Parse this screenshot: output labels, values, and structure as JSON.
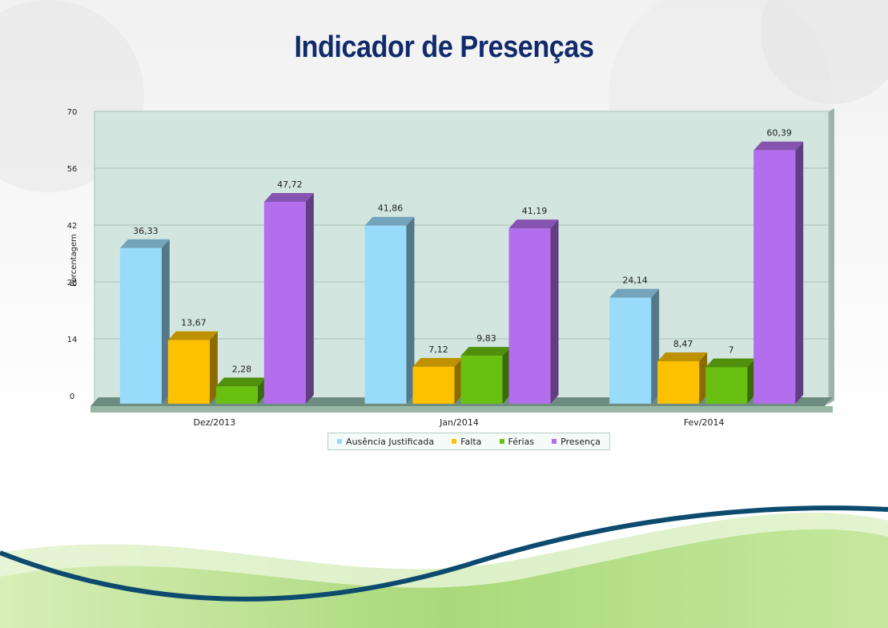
{
  "slide": {
    "title": "Indicador de Presenças"
  },
  "chart_data": {
    "type": "bar",
    "categories": [
      "Dez/2013",
      "Jan/2014",
      "Fev/2014"
    ],
    "series": [
      {
        "name": "Ausência Justificada",
        "values": [
          36.33,
          41.86,
          24.14
        ],
        "labels": [
          "36,33",
          "41,86",
          "24,14"
        ],
        "color": "#99dbfa"
      },
      {
        "name": "Falta",
        "values": [
          13.67,
          7.12,
          8.47
        ],
        "labels": [
          "13,67",
          "7,12",
          "8,47"
        ],
        "color": "#fdc100"
      },
      {
        "name": "Férias",
        "values": [
          2.28,
          9.83,
          7
        ],
        "labels": [
          "2,28",
          "9,83",
          "7"
        ],
        "color": "#6ac010"
      },
      {
        "name": "Presença",
        "values": [
          47.72,
          41.19,
          60.39
        ],
        "labels": [
          "47,72",
          "41,19",
          "60,39"
        ],
        "color": "#b26eec"
      }
    ],
    "ylabel": "Porcentagem",
    "xlabel": "",
    "ylim": [
      0,
      70
    ],
    "yticks": [
      "0",
      "14",
      "28",
      "42",
      "56",
      "70"
    ],
    "grid": true,
    "three_d": true,
    "legend_position": "bottom-center",
    "plot_background": "#d3e5df"
  }
}
